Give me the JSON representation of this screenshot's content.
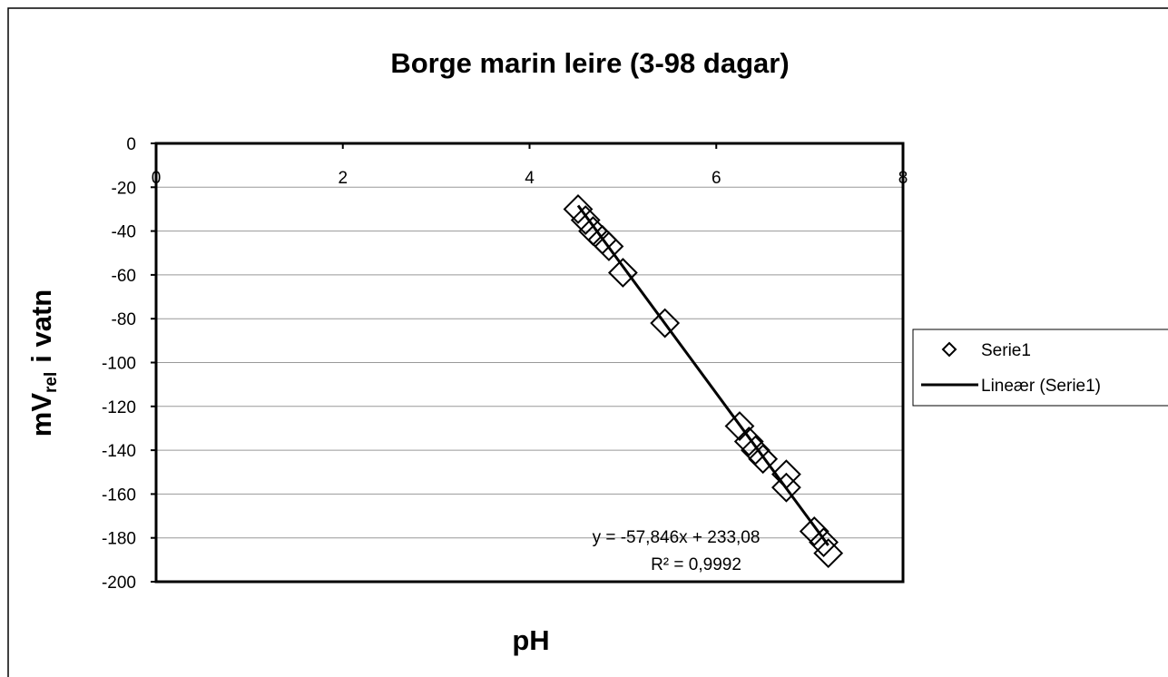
{
  "chart_data": {
    "type": "scatter",
    "title": "Borge marin leire (3-98 dagar)",
    "xlabel": "pH",
    "ylabel": [
      "mV",
      "rel",
      "i vatn"
    ],
    "xlim": [
      0,
      8
    ],
    "xticks": [
      0,
      2,
      4,
      6,
      8
    ],
    "ylim": [
      -200,
      0
    ],
    "yticks": [
      0,
      -20,
      -40,
      -60,
      -80,
      -100,
      -120,
      -140,
      -160,
      -180,
      -200
    ],
    "grid": true,
    "legend": "right",
    "series": [
      {
        "name": "Serie1",
        "color": "#000000",
        "x": [
          4.52,
          4.6,
          4.68,
          4.78,
          4.85,
          5.0,
          5.45,
          6.25,
          6.35,
          6.42,
          6.5,
          6.75,
          6.75,
          7.05,
          7.15,
          7.2
        ],
        "values": [
          -30,
          -35,
          -40,
          -44,
          -47,
          -59,
          -82,
          -129,
          -136,
          -140,
          -144,
          -151,
          -157,
          -177,
          -182,
          -187
        ]
      }
    ],
    "trendline": {
      "name": "Lineær (Serie1)",
      "slope": -57.846,
      "intercept": 233.08,
      "color": "#000000"
    },
    "annotations": [
      "y = -57,846x + 233,08",
      "R² = 0,9992"
    ]
  }
}
